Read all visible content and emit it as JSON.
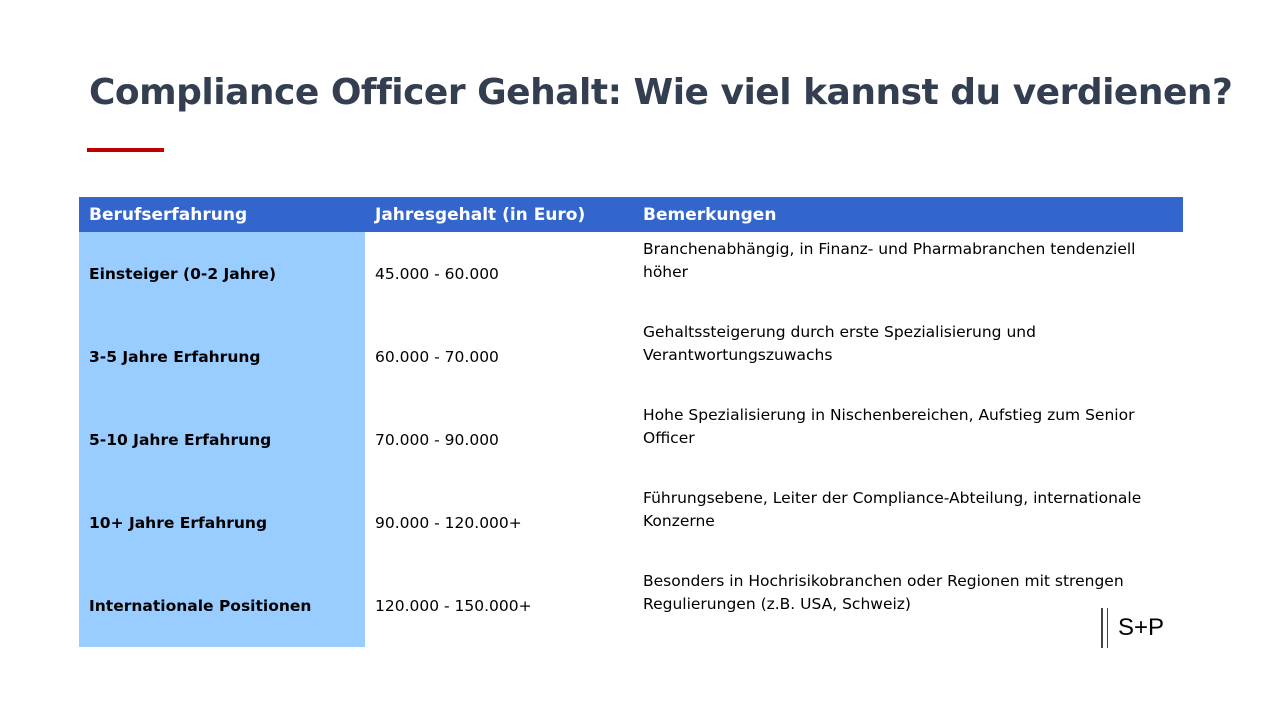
{
  "title": "Compliance Officer Gehalt: Wie viel kannst du verdienen?",
  "colors": {
    "title": "#333F50",
    "accent": "#C00000",
    "header": "#3366CC",
    "first_column": "#99CCFF"
  },
  "table": {
    "headers": [
      "Berufserfahrung",
      "Jahresgehalt (in Euro)",
      "Bemerkungen"
    ],
    "rows": [
      [
        "Einsteiger (0-2 Jahre)",
        "45.000 - 60.000",
        "Branchenabhängig, in Finanz- und Pharmabranchen tendenziell höher"
      ],
      [
        "3-5 Jahre Erfahrung",
        "60.000 - 70.000",
        "Gehaltssteigerung durch erste Spezialisierung und Verantwortungszuwachs"
      ],
      [
        "5-10 Jahre Erfahrung",
        "70.000 - 90.000",
        "Hohe Spezialisierung in Nischenbereichen, Aufstieg zum Senior Officer"
      ],
      [
        "10+ Jahre Erfahrung",
        "90.000 - 120.000+",
        "Führungsebene, Leiter der Compliance-Abteilung, internationale Konzerne"
      ],
      [
        "Internationale Positionen",
        "120.000 - 150.000+",
        "Besonders in Hochrisikobranchen oder Regionen mit strengen Regulierungen (z.B. USA, Schweiz)"
      ]
    ]
  },
  "logo": "S+P"
}
